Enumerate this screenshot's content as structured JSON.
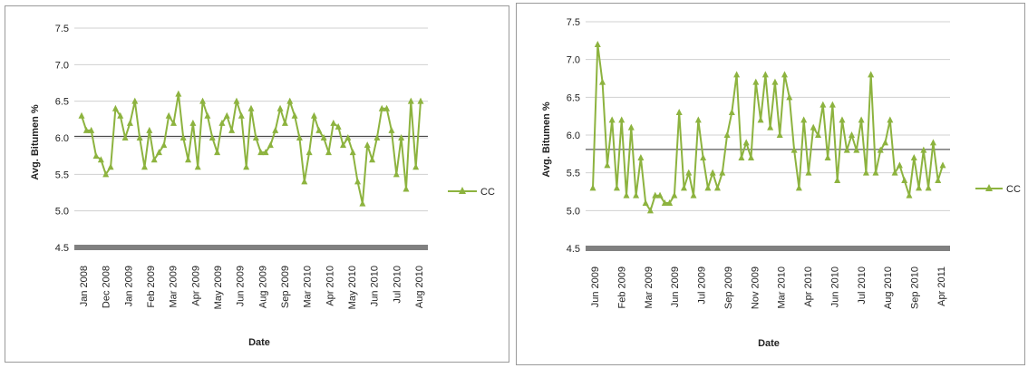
{
  "colors": {
    "series": "#8db33f",
    "reference_line": "#333333",
    "grid": "#d0d0d0",
    "floor_bar": "#808080"
  },
  "chart_data": [
    {
      "type": "line",
      "xlabel": "Date",
      "ylabel": "Avg. Bitumen %",
      "ylim": [
        4.5,
        7.5
      ],
      "yticks": [
        "4.5",
        "5.0",
        "5.5",
        "6.0",
        "6.5",
        "7.0",
        "7.5"
      ],
      "grid": "horizontal",
      "legend_position": "right",
      "x_tick_labels": [
        "Jan 2008",
        "Dec 2008",
        "Jan 2009",
        "Feb 2009",
        "Mar 2009",
        "Apr 2009",
        "May 2009",
        "Jun 2009",
        "Aug 2009",
        "Sep 2009",
        "Mar 2010",
        "Apr 2010",
        "May 2010",
        "Jun 2010",
        "Jul 2010",
        "Aug 2010"
      ],
      "reference_line": 6.02,
      "series": [
        {
          "name": "CC",
          "values": [
            6.3,
            6.1,
            6.1,
            5.75,
            5.7,
            5.5,
            5.6,
            6.4,
            6.3,
            6.0,
            6.2,
            6.5,
            6.0,
            5.6,
            6.1,
            5.7,
            5.8,
            5.9,
            6.3,
            6.2,
            6.6,
            6.0,
            5.7,
            6.2,
            5.6,
            6.5,
            6.3,
            6.0,
            5.8,
            6.2,
            6.3,
            6.1,
            6.5,
            6.3,
            5.6,
            6.4,
            6.0,
            5.8,
            5.8,
            5.9,
            6.1,
            6.4,
            6.2,
            6.5,
            6.3,
            6.0,
            5.4,
            5.8,
            6.3,
            6.1,
            6.0,
            5.8,
            6.2,
            6.15,
            5.9,
            6.0,
            5.8,
            5.4,
            5.1,
            5.9,
            5.7,
            6.0,
            6.4,
            6.4,
            6.1,
            5.5,
            6.0,
            5.3,
            6.5,
            5.6,
            6.5
          ]
        }
      ]
    },
    {
      "type": "line",
      "xlabel": "Date",
      "ylabel": "Avg. Bitumen %",
      "ylim": [
        4.5,
        7.5
      ],
      "yticks": [
        "4.5",
        "5.0",
        "5.5",
        "6.0",
        "6.5",
        "7.0",
        "7.5"
      ],
      "grid": "horizontal",
      "legend_position": "right",
      "x_tick_labels": [
        "Jun 2009",
        "Feb 2009",
        "Mar 2009",
        "Jun 2009",
        "Jul 2009",
        "Sep 2009",
        "Nov 2009",
        "Mar 2010",
        "Apr 2010",
        "Jun 2010",
        "Jul 2010",
        "Aug 2010",
        "Sep 2010",
        "Apr 2011"
      ],
      "reference_line": 5.81,
      "series": [
        {
          "name": "CC",
          "values": [
            5.3,
            7.2,
            6.7,
            5.6,
            6.2,
            5.3,
            6.2,
            5.2,
            6.1,
            5.2,
            5.7,
            5.1,
            5.0,
            5.2,
            5.2,
            5.1,
            5.1,
            5.2,
            6.3,
            5.3,
            5.5,
            5.2,
            6.2,
            5.7,
            5.3,
            5.5,
            5.3,
            5.5,
            6.0,
            6.3,
            6.8,
            5.7,
            5.9,
            5.7,
            6.7,
            6.2,
            6.8,
            6.1,
            6.7,
            6.0,
            6.8,
            6.5,
            5.8,
            5.3,
            6.2,
            5.5,
            6.1,
            6.0,
            6.4,
            5.7,
            6.4,
            5.4,
            6.2,
            5.8,
            6.0,
            5.8,
            6.2,
            5.5,
            6.8,
            5.5,
            5.8,
            5.9,
            6.2,
            5.5,
            5.6,
            5.4,
            5.2,
            5.7,
            5.3,
            5.8,
            5.3,
            5.9,
            5.4,
            5.6
          ]
        }
      ]
    }
  ]
}
